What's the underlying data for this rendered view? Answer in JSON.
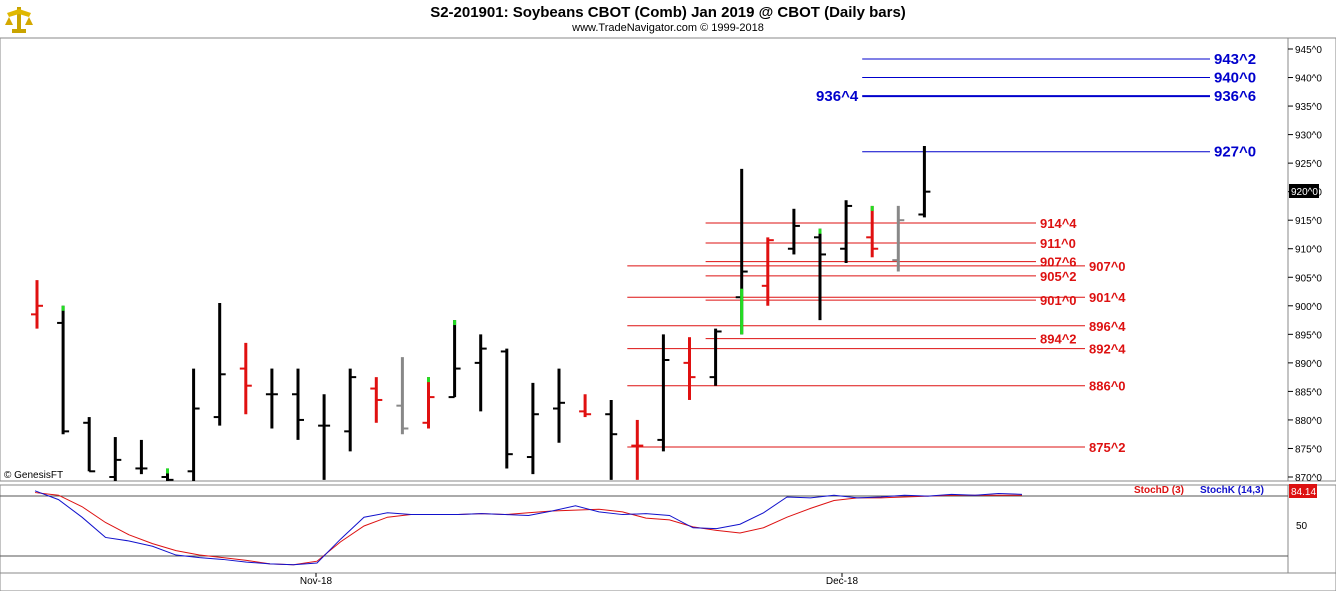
{
  "header": {
    "title": "S2-201901:  Soybeans CBOT (Comb) Jan 2019 @ CBOT  (Daily bars)",
    "subtitle": "www.TradeNavigator.com © 1999-2018",
    "logo_icon": "trade-navigator-logo-icon"
  },
  "watermark": "© GenesisFT",
  "colors": {
    "up": "#000000",
    "down": "#e01010",
    "gray": "#888888",
    "green": "#22dd22",
    "blue_level": "#0000cc",
    "red_level": "#dd1111",
    "stochD": "#dd1111",
    "stochK": "#1111cc"
  },
  "chart_data": [
    {
      "type": "ohlc",
      "price_axis": {
        "ticks": [
          "870^0",
          "875^0",
          "880^0",
          "885^0",
          "890^0",
          "895^0",
          "900^0",
          "905^0",
          "910^0",
          "915^0",
          "920^0",
          "925^0",
          "930^0",
          "935^0",
          "940^0",
          "945^0"
        ],
        "range": [
          869,
          947
        ]
      },
      "last_price_label": "920^0",
      "x_labels": [
        "Nov-18",
        "Dec-18"
      ],
      "bars": [
        {
          "h": 904.5,
          "l": 896,
          "o": 898.5,
          "c": 900,
          "col": "down"
        },
        {
          "h": 900,
          "l": 877.5,
          "o": 897,
          "c": 878,
          "col": "up",
          "tip": true
        },
        {
          "h": 880.5,
          "l": 871,
          "o": 879.5,
          "c": 871,
          "col": "up"
        },
        {
          "h": 877,
          "l": 869,
          "o": 870,
          "c": 873,
          "col": "up"
        },
        {
          "h": 876.5,
          "l": 870.5,
          "o": 871.5,
          "c": 871.5,
          "col": "up"
        },
        {
          "h": 871.5,
          "l": 869,
          "o": 870,
          "c": 869.5,
          "col": "up",
          "tip": true
        },
        {
          "h": 889,
          "l": 869,
          "o": 871,
          "c": 882,
          "col": "up"
        },
        {
          "h": 900.5,
          "l": 879,
          "o": 880.5,
          "c": 888,
          "col": "up"
        },
        {
          "h": 893.5,
          "l": 881,
          "o": 889,
          "c": 886,
          "col": "down"
        },
        {
          "h": 889,
          "l": 878.5,
          "o": 884.5,
          "c": 884.5,
          "col": "up"
        },
        {
          "h": 889,
          "l": 876.5,
          "o": 884.5,
          "c": 880,
          "col": "up"
        },
        {
          "h": 884.5,
          "l": 869.5,
          "o": 879,
          "c": 879,
          "col": "up"
        },
        {
          "h": 889,
          "l": 874.5,
          "o": 878,
          "c": 887.5,
          "col": "up"
        },
        {
          "h": 887.5,
          "l": 879.5,
          "o": 885.5,
          "c": 883.5,
          "col": "down"
        },
        {
          "h": 891,
          "l": 877.5,
          "o": 882.5,
          "c": 878.5,
          "col": "gray"
        },
        {
          "h": 887.5,
          "l": 878.5,
          "o": 879.5,
          "c": 884,
          "col": "down",
          "tip": true
        },
        {
          "h": 897.5,
          "l": 884,
          "o": 884,
          "c": 889,
          "col": "up",
          "tip": true
        },
        {
          "h": 895,
          "l": 881.5,
          "o": 890,
          "c": 892.5,
          "col": "up"
        },
        {
          "h": 892.5,
          "l": 871.5,
          "o": 892,
          "c": 874,
          "col": "up"
        },
        {
          "h": 886.5,
          "l": 870.5,
          "o": 873.5,
          "c": 881,
          "col": "up"
        },
        {
          "h": 889,
          "l": 876,
          "o": 882,
          "c": 883,
          "col": "up"
        },
        {
          "h": 884.5,
          "l": 880.5,
          "o": 881.5,
          "c": 881,
          "col": "down"
        },
        {
          "h": 883.5,
          "l": 869.5,
          "o": 881,
          "c": 877.5,
          "col": "up"
        },
        {
          "h": 880,
          "l": 869.5,
          "o": 875.5,
          "c": 875.5,
          "col": "down"
        },
        {
          "h": 895,
          "l": 874.5,
          "o": 876.5,
          "c": 890.5,
          "col": "up"
        },
        {
          "h": 894.5,
          "l": 883.5,
          "o": 890,
          "c": 887.5,
          "col": "down"
        },
        {
          "h": 896,
          "l": 886,
          "o": 887.5,
          "c": 895.5,
          "col": "up"
        },
        {
          "h": 924,
          "l": 895,
          "o": 901.5,
          "c": 906,
          "col": "up",
          "greenlow": true
        },
        {
          "h": 912,
          "l": 900,
          "o": 903.5,
          "c": 911.5,
          "col": "down"
        },
        {
          "h": 917,
          "l": 909,
          "o": 910,
          "c": 914,
          "col": "up"
        },
        {
          "h": 913.5,
          "l": 897.5,
          "o": 912,
          "c": 909,
          "col": "up",
          "tip": true
        },
        {
          "h": 918.5,
          "l": 907.5,
          "o": 910,
          "c": 917.5,
          "col": "up"
        },
        {
          "h": 917.5,
          "l": 908.5,
          "o": 912,
          "c": 910,
          "col": "down",
          "tip": true
        },
        {
          "h": 917.5,
          "l": 906,
          "o": 908,
          "c": 915,
          "col": "gray"
        },
        {
          "h": 928,
          "l": 915.5,
          "o": 916,
          "c": 920,
          "col": "up"
        }
      ],
      "levels": [
        {
          "label": "943^2",
          "value": 943.25,
          "x_start": 32,
          "side": "right",
          "color": "blue"
        },
        {
          "label": "940^0",
          "value": 940.0,
          "x_start": 32,
          "side": "right",
          "color": "blue"
        },
        {
          "label": "936^6",
          "value": 936.75,
          "x_start": 32,
          "side": "right",
          "color": "blue",
          "left_label": "936^4"
        },
        {
          "label": "927^0",
          "value": 927.0,
          "x_start": 32,
          "side": "right",
          "color": "blue"
        },
        {
          "label": "914^4",
          "value": 914.5,
          "x_start": 26,
          "side": "mid",
          "color": "red"
        },
        {
          "label": "911^0",
          "value": 911.0,
          "x_start": 26,
          "side": "mid",
          "color": "red"
        },
        {
          "label": "907^6",
          "value": 907.75,
          "x_start": 26,
          "side": "mid",
          "color": "red"
        },
        {
          "label": "907^0",
          "value": 907.0,
          "x_start": 23,
          "side": "right",
          "color": "red"
        },
        {
          "label": "905^2",
          "value": 905.25,
          "x_start": 26,
          "side": "mid",
          "color": "red"
        },
        {
          "label": "901^0",
          "value": 901.0,
          "x_start": 26,
          "side": "mid",
          "color": "red"
        },
        {
          "label": "901^4",
          "value": 901.5,
          "x_start": 23,
          "side": "right",
          "color": "red"
        },
        {
          "label": "896^4",
          "value": 896.5,
          "x_start": 23,
          "side": "right",
          "color": "red"
        },
        {
          "label": "894^2",
          "value": 894.25,
          "x_start": 26,
          "side": "mid",
          "color": "red"
        },
        {
          "label": "892^4",
          "value": 892.5,
          "x_start": 23,
          "side": "right",
          "color": "red"
        },
        {
          "label": "886^0",
          "value": 886.0,
          "x_start": 23,
          "side": "right",
          "color": "red"
        },
        {
          "label": "875^2",
          "value": 875.25,
          "x_start": 23,
          "side": "right",
          "color": "red"
        }
      ]
    },
    {
      "type": "line",
      "title": "StochD (3)   StochK (14,3)",
      "legend": [
        "StochD (3)",
        "StochK (14,3)"
      ],
      "y_ticks": [
        "50"
      ],
      "range": [
        0,
        100
      ],
      "last_value_label": "84.14",
      "series": [
        {
          "name": "StochD (3)",
          "color": "stochD",
          "values": [
            [
              0,
              88
            ],
            [
              1,
              85
            ],
            [
              2,
              72
            ],
            [
              3,
              54
            ],
            [
              4,
              40
            ],
            [
              5,
              30
            ],
            [
              6,
              22
            ],
            [
              7,
              17
            ],
            [
              8,
              14
            ],
            [
              9,
              11
            ],
            [
              10,
              7
            ],
            [
              11,
              6
            ],
            [
              12,
              10
            ],
            [
              13,
              32
            ],
            [
              14,
              50
            ],
            [
              15,
              60
            ],
            [
              16,
              63
            ],
            [
              17,
              63
            ],
            [
              18,
              63
            ],
            [
              19,
              64
            ],
            [
              20,
              63
            ],
            [
              21,
              65
            ],
            [
              22,
              67
            ],
            [
              23,
              68
            ],
            [
              24,
              69
            ],
            [
              25,
              66
            ],
            [
              26,
              59
            ],
            [
              27,
              57
            ],
            [
              28,
              49
            ],
            [
              29,
              45
            ],
            [
              30,
              42
            ],
            [
              31,
              48
            ],
            [
              32,
              60
            ],
            [
              33,
              70
            ],
            [
              34,
              79
            ],
            [
              35,
              82
            ],
            [
              36,
              82
            ],
            [
              37,
              83
            ],
            [
              38,
              84
            ],
            [
              39,
              85
            ],
            [
              40,
              85
            ],
            [
              41,
              85
            ],
            [
              42,
              85
            ]
          ]
        },
        {
          "name": "StochK (14,3)",
          "color": "stochK",
          "values": [
            [
              0,
              90
            ],
            [
              1,
              80
            ],
            [
              2,
              60
            ],
            [
              3,
              37
            ],
            [
              4,
              33
            ],
            [
              5,
              27
            ],
            [
              6,
              17
            ],
            [
              7,
              14
            ],
            [
              8,
              12
            ],
            [
              9,
              9
            ],
            [
              10,
              7
            ],
            [
              11,
              6
            ],
            [
              12,
              8
            ],
            [
              13,
              35
            ],
            [
              14,
              60
            ],
            [
              15,
              65
            ],
            [
              16,
              63
            ],
            [
              17,
              63
            ],
            [
              18,
              63
            ],
            [
              19,
              64
            ],
            [
              20,
              63
            ],
            [
              21,
              62
            ],
            [
              22,
              67
            ],
            [
              23,
              73
            ],
            [
              24,
              66
            ],
            [
              25,
              63
            ],
            [
              26,
              64
            ],
            [
              27,
              62
            ],
            [
              28,
              48
            ],
            [
              29,
              47
            ],
            [
              30,
              52
            ],
            [
              31,
              65
            ],
            [
              32,
              83
            ],
            [
              33,
              82
            ],
            [
              34,
              85
            ],
            [
              35,
              82
            ],
            [
              36,
              83
            ],
            [
              37,
              85
            ],
            [
              38,
              84
            ],
            [
              39,
              86
            ],
            [
              40,
              85
            ],
            [
              41,
              87
            ],
            [
              42,
              86
            ]
          ]
        }
      ]
    }
  ]
}
